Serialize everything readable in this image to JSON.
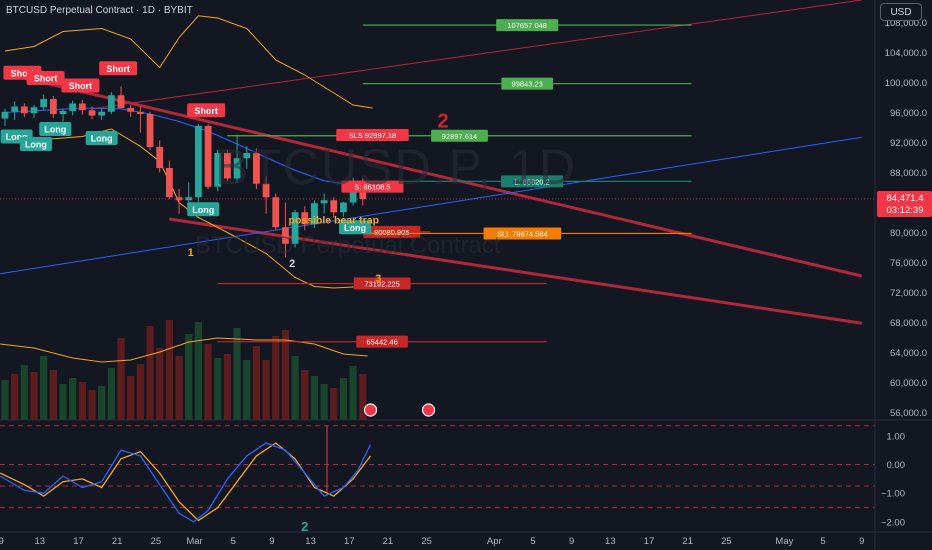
{
  "header": {
    "title": "BTCUSD Perpetual Contract · 1D · BYBIT",
    "currency_button": "USD"
  },
  "watermark": {
    "symbol": "BTCUSD.P, 1D",
    "name": "BTCUSD Perpetual Contract"
  },
  "chart_data": {
    "type": "line",
    "price_axis": {
      "labels": [
        "108,000.0",
        "104,000.0",
        "100,000.0",
        "96,000.0",
        "92,000.0",
        "88,000.0",
        "84,000.0",
        "80,000.0",
        "76,000.0",
        "72,000.0",
        "68,000.0",
        "64,000.0",
        "60,000.0",
        "56,000.0"
      ],
      "range": [
        55000,
        111000
      ]
    },
    "current_price": {
      "value": 84471.4,
      "label": "84,471.4",
      "countdown": "03:12:39",
      "color": "#f23645"
    },
    "oscillator_axis": {
      "labels": [
        "1.00",
        "0.00",
        "−1.00",
        "−2.00"
      ],
      "range": [
        -2.35,
        1.55
      ]
    },
    "time_axis": {
      "labels": [
        {
          "text": "9",
          "slot": -0.4
        },
        {
          "text": "13",
          "slot": 3.6
        },
        {
          "text": "17",
          "slot": 7.6
        },
        {
          "text": "21",
          "slot": 11.6
        },
        {
          "text": "25",
          "slot": 15.6
        },
        {
          "text": "Mar",
          "slot": 19.6
        },
        {
          "text": "5",
          "slot": 23.6
        },
        {
          "text": "9",
          "slot": 27.6
        },
        {
          "text": "13",
          "slot": 31.6
        },
        {
          "text": "17",
          "slot": 35.6
        },
        {
          "text": "21",
          "slot": 39.6
        },
        {
          "text": "25",
          "slot": 43.6
        },
        {
          "text": "Apr",
          "slot": 50.6
        },
        {
          "text": "5",
          "slot": 54.6
        },
        {
          "text": "9",
          "slot": 58.6
        },
        {
          "text": "13",
          "slot": 62.6
        },
        {
          "text": "17",
          "slot": 66.6
        },
        {
          "text": "21",
          "slot": 70.6
        },
        {
          "text": "25",
          "slot": 74.6
        },
        {
          "text": "May",
          "slot": 80.6
        },
        {
          "text": "5",
          "slot": 84.6
        },
        {
          "text": "9",
          "slot": 88.6
        }
      ]
    },
    "candles": [
      {
        "o": 95200,
        "h": 96500,
        "l": 94200,
        "c": 96100
      },
      {
        "o": 96100,
        "h": 97500,
        "l": 95000,
        "c": 96800
      },
      {
        "o": 96800,
        "h": 97200,
        "l": 95400,
        "c": 95900
      },
      {
        "o": 95900,
        "h": 97000,
        "l": 95300,
        "c": 96700
      },
      {
        "o": 96700,
        "h": 98400,
        "l": 96300,
        "c": 97800
      },
      {
        "o": 97800,
        "h": 98200,
        "l": 95300,
        "c": 95800
      },
      {
        "o": 95800,
        "h": 96500,
        "l": 94800,
        "c": 96200
      },
      {
        "o": 96200,
        "h": 97600,
        "l": 95600,
        "c": 97200
      },
      {
        "o": 97200,
        "h": 97700,
        "l": 95700,
        "c": 96300
      },
      {
        "o": 96300,
        "h": 96800,
        "l": 95100,
        "c": 95600
      },
      {
        "o": 95600,
        "h": 96500,
        "l": 95000,
        "c": 96100
      },
      {
        "o": 96100,
        "h": 98700,
        "l": 95800,
        "c": 98300
      },
      {
        "o": 98300,
        "h": 99500,
        "l": 96800,
        "c": 96600
      },
      {
        "o": 96600,
        "h": 97000,
        "l": 95400,
        "c": 96100
      },
      {
        "o": 96100,
        "h": 96900,
        "l": 93300,
        "c": 95800
      },
      {
        "o": 95800,
        "h": 96100,
        "l": 91000,
        "c": 91400
      },
      {
        "o": 91400,
        "h": 92300,
        "l": 88000,
        "c": 88600
      },
      {
        "o": 88600,
        "h": 89500,
        "l": 84500,
        "c": 84700
      },
      {
        "o": 84700,
        "h": 85800,
        "l": 82500,
        "c": 84300
      },
      {
        "o": 84300,
        "h": 86700,
        "l": 83000,
        "c": 84700
      },
      {
        "o": 84700,
        "h": 94500,
        "l": 84100,
        "c": 94200
      },
      {
        "o": 94200,
        "h": 94400,
        "l": 85800,
        "c": 86100
      },
      {
        "o": 86100,
        "h": 91000,
        "l": 85500,
        "c": 90600
      },
      {
        "o": 90600,
        "h": 91000,
        "l": 86800,
        "c": 87200
      },
      {
        "o": 87200,
        "h": 93000,
        "l": 86600,
        "c": 89900
      },
      {
        "o": 89900,
        "h": 91500,
        "l": 88500,
        "c": 90600
      },
      {
        "o": 90600,
        "h": 91200,
        "l": 85800,
        "c": 86500
      },
      {
        "o": 86500,
        "h": 87500,
        "l": 82500,
        "c": 84700
      },
      {
        "o": 84700,
        "h": 85200,
        "l": 80400,
        "c": 80700
      },
      {
        "o": 80700,
        "h": 84000,
        "l": 76700,
        "c": 78500
      },
      {
        "o": 78500,
        "h": 83000,
        "l": 78000,
        "c": 82700
      },
      {
        "o": 82700,
        "h": 83500,
        "l": 80300,
        "c": 81100
      },
      {
        "o": 81100,
        "h": 84300,
        "l": 80600,
        "c": 83900
      },
      {
        "o": 83900,
        "h": 85200,
        "l": 82500,
        "c": 84300
      },
      {
        "o": 84300,
        "h": 84700,
        "l": 82000,
        "c": 82700
      },
      {
        "o": 82700,
        "h": 84100,
        "l": 82100,
        "c": 84000
      },
      {
        "o": 84000,
        "h": 87300,
        "l": 83600,
        "c": 86900
      },
      {
        "o": 86900,
        "h": 87200,
        "l": 83600,
        "c": 84471.4
      }
    ],
    "bollinger_upper": [
      {
        "slot": 0,
        "v": 104200
      },
      {
        "slot": 3,
        "v": 104800
      },
      {
        "slot": 6,
        "v": 106800
      },
      {
        "slot": 10,
        "v": 107200
      },
      {
        "slot": 13,
        "v": 105800
      },
      {
        "slot": 16,
        "v": 102000
      },
      {
        "slot": 18,
        "v": 106000
      },
      {
        "slot": 20,
        "v": 108900
      },
      {
        "slot": 22,
        "v": 108600
      },
      {
        "slot": 25,
        "v": 107200
      },
      {
        "slot": 28,
        "v": 103000
      },
      {
        "slot": 31,
        "v": 101000
      },
      {
        "slot": 34,
        "v": 98600
      },
      {
        "slot": 36,
        "v": 97000
      },
      {
        "slot": 38,
        "v": 96600
      }
    ],
    "bollinger_lower": [
      {
        "slot": 0,
        "v": 93400
      },
      {
        "slot": 4,
        "v": 92400
      },
      {
        "slot": 8,
        "v": 92800
      },
      {
        "slot": 11,
        "v": 93800
      },
      {
        "slot": 14,
        "v": 91500
      },
      {
        "slot": 16,
        "v": 89500
      },
      {
        "slot": 18,
        "v": 84000
      },
      {
        "slot": 20,
        "v": 82000
      },
      {
        "slot": 23,
        "v": 80000
      },
      {
        "slot": 27,
        "v": 77200
      },
      {
        "slot": 30,
        "v": 74000
      },
      {
        "slot": 32,
        "v": 72800
      },
      {
        "slot": 34,
        "v": 72600
      },
      {
        "slot": 37,
        "v": 72800
      }
    ],
    "moving_average": [
      {
        "slot": 0,
        "v": 96000
      },
      {
        "slot": 4,
        "v": 96300
      },
      {
        "slot": 8,
        "v": 96600
      },
      {
        "slot": 12,
        "v": 96500
      },
      {
        "slot": 15,
        "v": 95800
      },
      {
        "slot": 18,
        "v": 94800
      },
      {
        "slot": 21,
        "v": 93500
      },
      {
        "slot": 24,
        "v": 91800
      },
      {
        "slot": 27,
        "v": 90000
      },
      {
        "slot": 30,
        "v": 88300
      },
      {
        "slot": 33,
        "v": 86900
      },
      {
        "slot": 36,
        "v": 86300
      },
      {
        "slot": 38,
        "v": 86200
      }
    ],
    "trend_lines": [
      {
        "color": "#b2273a",
        "width": 3,
        "from": {
          "slot": 0,
          "v": 101200
        },
        "to": {
          "slot": 88.6,
          "v": 74200
        }
      },
      {
        "color": "#b2273a",
        "width": 3,
        "from": {
          "slot": 17,
          "v": 81800
        },
        "to": {
          "slot": 88.6,
          "v": 67900
        }
      },
      {
        "color": "#b2273a",
        "width": 1,
        "from": {
          "slot": 9,
          "v": 96500
        },
        "to": {
          "slot": 88.6,
          "v": 111000
        }
      },
      {
        "color": "#2962ff",
        "width": 1,
        "from": {
          "slot": -0.5,
          "v": 74500
        },
        "to": {
          "slot": 88.6,
          "v": 92700
        }
      }
    ],
    "price_levels": [
      {
        "value": 107657.048,
        "label": "107657.048",
        "color": "#4caf50",
        "from": 37,
        "to": 71
      },
      {
        "value": 99843.23,
        "label": "99843.23",
        "color": "#4caf50",
        "from": 37,
        "to": 71
      },
      {
        "value": 92897.614,
        "label": "92897.614",
        "color": "#4caf50",
        "from": 23,
        "to": 71
      },
      {
        "value": 86820.2,
        "label": "L: 86820.2",
        "color": "#1b7e6b",
        "from": 38,
        "to": 71
      },
      {
        "value": 86108.5,
        "label": "S: 86108.5",
        "color": "#f23645",
        "from": 38,
        "to": 38
      },
      {
        "value": 92997.18,
        "label": "SLS 92997.18",
        "color": "#f23645",
        "from": 38,
        "to": 38
      },
      {
        "value": 80080.905,
        "label": "80080.905",
        "color": "#c62828",
        "from": 36,
        "to": 44
      },
      {
        "value": 79874.584,
        "label": "SLL 79874.584",
        "color": "#f57c00",
        "from": 36,
        "to": 71
      },
      {
        "value": 73192.225,
        "label": "73192.225",
        "color": "#c62828",
        "from": 22,
        "to": 56
      },
      {
        "value": 65442.46,
        "label": "65442.46",
        "color": "#c62828",
        "from": 22,
        "to": 56
      }
    ],
    "signals": [
      {
        "text": "Short",
        "type": "short",
        "slot": 1.8,
        "v": 101300
      },
      {
        "text": "Short",
        "type": "short",
        "slot": 4.2,
        "v": 100600
      },
      {
        "text": "Short",
        "type": "short",
        "slot": 7.8,
        "v": 99600
      },
      {
        "text": "Short",
        "type": "short",
        "slot": 11.7,
        "v": 101900
      },
      {
        "text": "Short",
        "type": "short",
        "slot": 20.8,
        "v": 96300
      },
      {
        "text": "Long",
        "type": "long",
        "slot": 1.2,
        "v": 92800
      },
      {
        "text": "Long",
        "type": "long",
        "slot": 3.2,
        "v": 91800
      },
      {
        "text": "Long",
        "type": "long",
        "slot": 5.2,
        "v": 93800
      },
      {
        "text": "Long",
        "type": "long",
        "slot": 10,
        "v": 92600
      },
      {
        "text": "Long",
        "type": "long",
        "slot": 20.5,
        "v": 83100
      },
      {
        "text": "Long",
        "type": "long",
        "slot": 36.2,
        "v": 80700
      }
    ],
    "annotations": [
      {
        "text": "possible bear trap",
        "color": "#f5a623",
        "slot": 34,
        "v": 81200
      },
      {
        "text": "1",
        "color": "#f5a623",
        "slot": 19.2,
        "v": 76900
      },
      {
        "text": "2",
        "color": "#d1d4dc",
        "slot": 29.7,
        "v": 75400
      },
      {
        "text": "3",
        "color": "#f5a623",
        "slot": 38.6,
        "v": 73400
      },
      {
        "text": "2",
        "color": "#c62828",
        "slot": 45.3,
        "v": 94000
      }
    ],
    "volume": [
      {
        "v": 0.4,
        "up": true
      },
      {
        "v": 0.46,
        "up": false
      },
      {
        "v": 0.55,
        "up": true
      },
      {
        "v": 0.48,
        "up": false
      },
      {
        "v": 0.64,
        "up": true
      },
      {
        "v": 0.5,
        "up": false
      },
      {
        "v": 0.36,
        "up": true
      },
      {
        "v": 0.42,
        "up": true
      },
      {
        "v": 0.38,
        "up": false
      },
      {
        "v": 0.3,
        "up": false
      },
      {
        "v": 0.34,
        "up": true
      },
      {
        "v": 0.52,
        "up": true
      },
      {
        "v": 0.82,
        "up": false
      },
      {
        "v": 0.44,
        "up": false
      },
      {
        "v": 0.56,
        "up": false
      },
      {
        "v": 0.94,
        "up": false
      },
      {
        "v": 0.72,
        "up": false
      },
      {
        "v": 1.0,
        "up": false
      },
      {
        "v": 0.64,
        "up": false
      },
      {
        "v": 0.86,
        "up": true
      },
      {
        "v": 0.98,
        "up": true
      },
      {
        "v": 0.76,
        "up": false
      },
      {
        "v": 0.62,
        "up": true
      },
      {
        "v": 0.66,
        "up": false
      },
      {
        "v": 0.92,
        "up": true
      },
      {
        "v": 0.6,
        "up": true
      },
      {
        "v": 0.74,
        "up": false
      },
      {
        "v": 0.6,
        "up": false
      },
      {
        "v": 0.84,
        "up": false
      },
      {
        "v": 0.9,
        "up": false
      },
      {
        "v": 0.64,
        "up": true
      },
      {
        "v": 0.5,
        "up": false
      },
      {
        "v": 0.44,
        "up": true
      },
      {
        "v": 0.36,
        "up": true
      },
      {
        "v": 0.32,
        "up": false
      },
      {
        "v": 0.42,
        "up": true
      },
      {
        "v": 0.54,
        "up": true
      },
      {
        "v": 0.46,
        "up": false
      }
    ],
    "volume_ma": [
      {
        "slot": -0.5,
        "v": 0.76
      },
      {
        "slot": 3,
        "v": 0.72
      },
      {
        "slot": 7,
        "v": 0.62
      },
      {
        "slot": 10,
        "v": 0.58
      },
      {
        "slot": 13,
        "v": 0.6
      },
      {
        "slot": 16,
        "v": 0.68
      },
      {
        "slot": 19,
        "v": 0.78
      },
      {
        "slot": 22,
        "v": 0.82
      },
      {
        "slot": 26,
        "v": 0.8
      },
      {
        "slot": 29,
        "v": 0.8
      },
      {
        "slot": 32,
        "v": 0.76
      },
      {
        "slot": 35,
        "v": 0.66
      },
      {
        "slot": 37.5,
        "v": 0.64
      }
    ],
    "event_markers": [
      {
        "slot": 37.8
      },
      {
        "slot": 43.8
      }
    ],
    "oscillator": {
      "k": [
        {
          "slot": -0.5,
          "v": -0.4
        },
        {
          "slot": 2,
          "v": -0.9
        },
        {
          "slot": 4,
          "v": -1.0
        },
        {
          "slot": 6,
          "v": -0.4
        },
        {
          "slot": 8,
          "v": -0.8
        },
        {
          "slot": 10,
          "v": -0.6
        },
        {
          "slot": 12,
          "v": 0.5
        },
        {
          "slot": 14,
          "v": 0.3
        },
        {
          "slot": 16,
          "v": -0.7
        },
        {
          "slot": 18,
          "v": -1.7
        },
        {
          "slot": 19.5,
          "v": -2.0
        },
        {
          "slot": 21,
          "v": -1.6
        },
        {
          "slot": 23,
          "v": -0.5
        },
        {
          "slot": 25,
          "v": 0.3
        },
        {
          "slot": 27,
          "v": 0.75
        },
        {
          "slot": 29,
          "v": 0.5
        },
        {
          "slot": 31,
          "v": -0.3
        },
        {
          "slot": 33,
          "v": -1.1
        },
        {
          "slot": 35,
          "v": -0.8
        },
        {
          "slot": 36.5,
          "v": -0.2
        },
        {
          "slot": 37.8,
          "v": 0.7
        }
      ],
      "d": [
        {
          "slot": -0.5,
          "v": -0.3
        },
        {
          "slot": 2,
          "v": -0.7
        },
        {
          "slot": 4,
          "v": -1.1
        },
        {
          "slot": 6,
          "v": -0.6
        },
        {
          "slot": 8,
          "v": -0.5
        },
        {
          "slot": 10,
          "v": -0.8
        },
        {
          "slot": 12,
          "v": 0.2
        },
        {
          "slot": 14,
          "v": 0.45
        },
        {
          "slot": 16,
          "v": -0.3
        },
        {
          "slot": 18,
          "v": -1.3
        },
        {
          "slot": 20,
          "v": -1.95
        },
        {
          "slot": 22,
          "v": -1.5
        },
        {
          "slot": 24,
          "v": -0.6
        },
        {
          "slot": 26,
          "v": 0.3
        },
        {
          "slot": 28,
          "v": 0.75
        },
        {
          "slot": 30,
          "v": 0.2
        },
        {
          "slot": 32,
          "v": -0.8
        },
        {
          "slot": 34,
          "v": -1.1
        },
        {
          "slot": 36,
          "v": -0.5
        },
        {
          "slot": 37.8,
          "v": 0.3
        }
      ],
      "spike": {
        "slot": 33.3,
        "from": -1.1,
        "to": 1.35
      },
      "dashed_levels": [
        1.35,
        0.0,
        -0.75,
        -1.5
      ],
      "marker": {
        "text": "2",
        "color": "#26a69a",
        "slot": 31
      }
    }
  }
}
